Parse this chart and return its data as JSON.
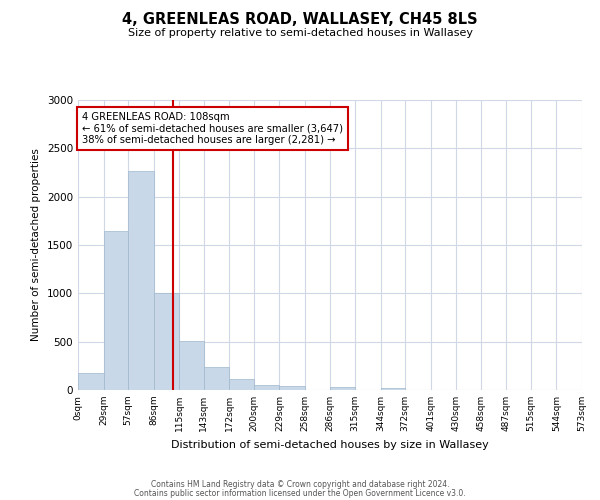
{
  "title": "4, GREENLEAS ROAD, WALLASEY, CH45 8LS",
  "subtitle": "Size of property relative to semi-detached houses in Wallasey",
  "xlabel": "Distribution of semi-detached houses by size in Wallasey",
  "ylabel": "Number of semi-detached properties",
  "bin_edges": [
    0,
    29,
    57,
    86,
    115,
    143,
    172,
    200,
    229,
    258,
    286,
    315,
    344,
    372,
    401,
    430,
    458,
    487,
    515,
    544,
    573
  ],
  "bar_heights": [
    175,
    1640,
    2270,
    1005,
    510,
    240,
    110,
    55,
    40,
    0,
    30,
    0,
    20,
    0,
    0,
    0,
    0,
    0,
    0,
    0
  ],
  "bar_color": "#c8d8e8",
  "bar_edgecolor": "#a0b8cc",
  "property_size": 108,
  "vline_color": "#cc0000",
  "annotation_title": "4 GREENLEAS ROAD: 108sqm",
  "annotation_line1": "← 61% of semi-detached houses are smaller (3,647)",
  "annotation_line2": "38% of semi-detached houses are larger (2,281) →",
  "annotation_box_edgecolor": "#cc0000",
  "ylim": [
    0,
    3000
  ],
  "yticks": [
    0,
    500,
    1000,
    1500,
    2000,
    2500,
    3000
  ],
  "tick_labels": [
    "0sqm",
    "29sqm",
    "57sqm",
    "86sqm",
    "115sqm",
    "143sqm",
    "172sqm",
    "200sqm",
    "229sqm",
    "258sqm",
    "286sqm",
    "315sqm",
    "344sqm",
    "372sqm",
    "401sqm",
    "430sqm",
    "458sqm",
    "487sqm",
    "515sqm",
    "544sqm",
    "573sqm"
  ],
  "footer1": "Contains HM Land Registry data © Crown copyright and database right 2024.",
  "footer2": "Contains public sector information licensed under the Open Government Licence v3.0.",
  "background_color": "#ffffff",
  "grid_color": "#d0d8e8"
}
